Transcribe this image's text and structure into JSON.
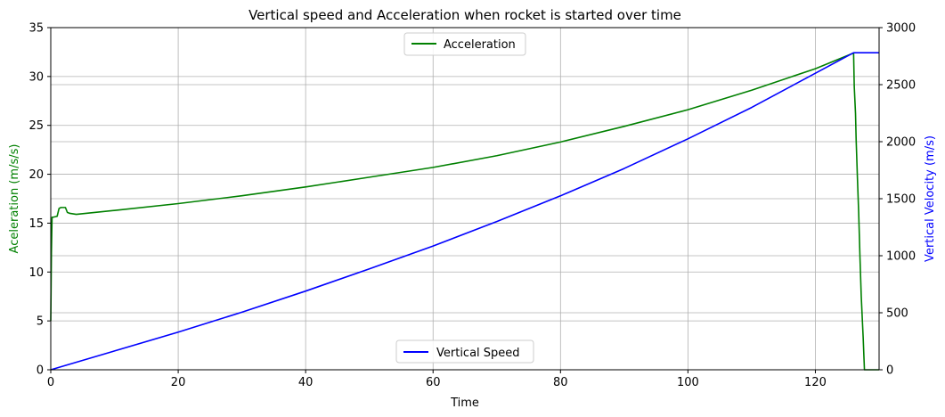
{
  "chart_data": {
    "type": "line",
    "title": "Vertical speed and Acceleration when rocket is started over time",
    "xlabel": "Time",
    "xlim": [
      0,
      130
    ],
    "x_ticks": [
      0,
      20,
      40,
      60,
      80,
      100,
      120
    ],
    "grid": true,
    "y_left": {
      "label": "Aceleration (m/s/s)",
      "color": "#008000",
      "lim": [
        0,
        35
      ],
      "ticks": [
        0,
        5,
        10,
        15,
        20,
        25,
        30,
        35
      ]
    },
    "y_right": {
      "label": "Vertical Velocity (m/s)",
      "color": "#0000ff",
      "lim": [
        0,
        3000
      ],
      "ticks": [
        0,
        500,
        1000,
        1500,
        2000,
        2500,
        3000
      ]
    },
    "series": [
      {
        "name": "Acceleration",
        "axis": "left",
        "color": "#008000",
        "legend_position": "upper center",
        "x": [
          0,
          0.1,
          0.2,
          0.3,
          1.0,
          1.3,
          1.6,
          2.3,
          2.6,
          3.0,
          4.0,
          10,
          20,
          30,
          40,
          50,
          60,
          70,
          80,
          90,
          100,
          110,
          120,
          126.0,
          126.1,
          126.3,
          126.4,
          126.6,
          126.8,
          127.0,
          127.2,
          127.5,
          127.7,
          130
        ],
        "y": [
          5.0,
          12.0,
          15.6,
          15.6,
          15.7,
          16.5,
          16.6,
          16.6,
          16.1,
          16.0,
          15.9,
          16.3,
          17.0,
          17.8,
          18.7,
          19.7,
          20.7,
          21.9,
          23.3,
          24.9,
          26.6,
          28.6,
          30.8,
          32.4,
          29.0,
          26.2,
          23.5,
          19.6,
          16.0,
          11.5,
          7.5,
          3.3,
          0.0,
          0.0
        ]
      },
      {
        "name": "Vertical Speed",
        "axis": "right",
        "color": "#0000ff",
        "legend_position": "lower center",
        "x": [
          0,
          10,
          20,
          30,
          40,
          50,
          60,
          70,
          80,
          90,
          100,
          110,
          120,
          126,
          130
        ],
        "y": [
          0,
          165,
          330,
          505,
          690,
          885,
          1085,
          1300,
          1525,
          1765,
          2025,
          2300,
          2600,
          2780,
          2780
        ]
      }
    ]
  }
}
